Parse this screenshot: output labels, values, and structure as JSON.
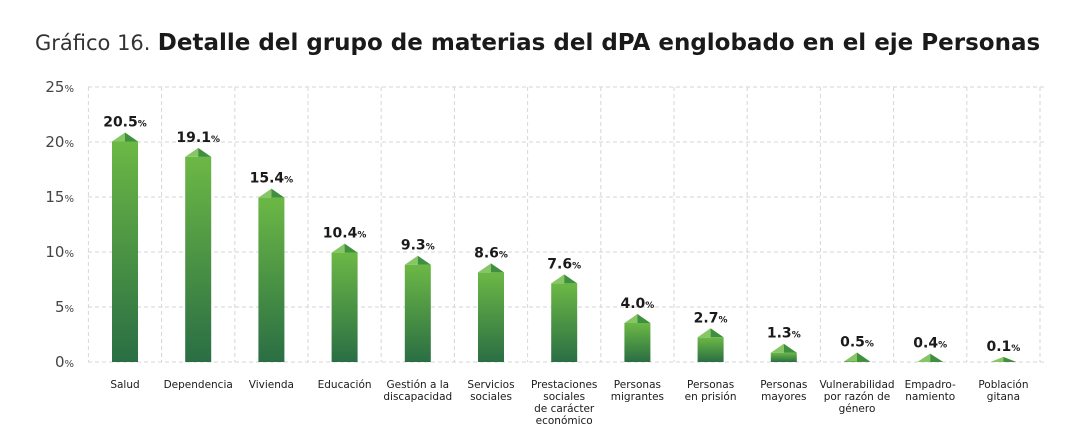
{
  "title": {
    "prefix": "Gráfico 16.",
    "main": "Detalle del grupo de materias del dPA englobado en el eje Personas"
  },
  "colors": {
    "bar_top": "#6cb845",
    "bar_bottom": "#2a6e44",
    "cap_light": "#86c665",
    "cap_dark": "#3e8f3e",
    "grid": "#d6d6d6",
    "axis_text": "#444444"
  },
  "chart_data": {
    "type": "bar",
    "unit_suffix": "%",
    "ylim": [
      0,
      25
    ],
    "yticks": [
      0,
      5,
      10,
      15,
      20,
      25
    ],
    "grid": true,
    "categories": [
      [
        "Salud"
      ],
      [
        "Dependencia"
      ],
      [
        "Vivienda"
      ],
      [
        "Educación"
      ],
      [
        "Gestión a la",
        "discapacidad"
      ],
      [
        "Servicios",
        "sociales"
      ],
      [
        "Prestaciones",
        "sociales",
        "de carácter",
        "económico"
      ],
      [
        "Personas",
        "migrantes"
      ],
      [
        "Personas",
        "en prisión"
      ],
      [
        "Personas",
        "mayores"
      ],
      [
        "Vulnerabilidad",
        "por razón de",
        "género"
      ],
      [
        "Empadro-",
        "namiento"
      ],
      [
        "Población",
        "gitana"
      ]
    ],
    "values": [
      20.5,
      19.1,
      15.4,
      10.4,
      9.3,
      8.6,
      7.6,
      4.0,
      2.7,
      1.3,
      0.5,
      0.4,
      0.1
    ],
    "value_labels": [
      "20.5",
      "19.1",
      "15.4",
      "10.4",
      "9.3",
      "8.6",
      "7.6",
      "4.0",
      "2.7",
      "1.3",
      "0.5",
      "0.4",
      "0.1"
    ]
  }
}
